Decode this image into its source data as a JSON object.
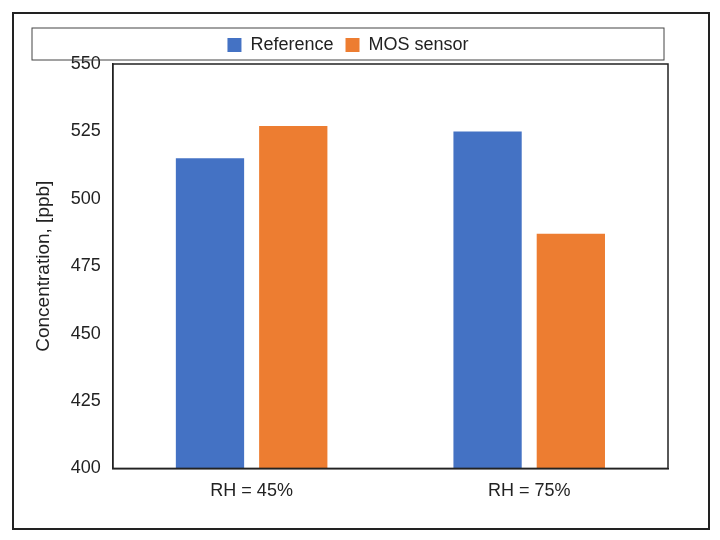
{
  "chart_data": {
    "type": "bar",
    "categories": [
      "RH = 45%",
      "RH = 75%"
    ],
    "series": [
      {
        "name": "Reference",
        "color": "#4472c4",
        "values": [
          515,
          525
        ]
      },
      {
        "name": "MOS sensor",
        "color": "#ed7d31",
        "values": [
          527,
          487
        ]
      }
    ],
    "y_label": "Concentration, [ppb]",
    "ylim": [
      400,
      550
    ],
    "yticks": [
      400,
      425,
      450,
      475,
      500,
      525,
      550
    ],
    "grid": false,
    "legend": "top"
  }
}
